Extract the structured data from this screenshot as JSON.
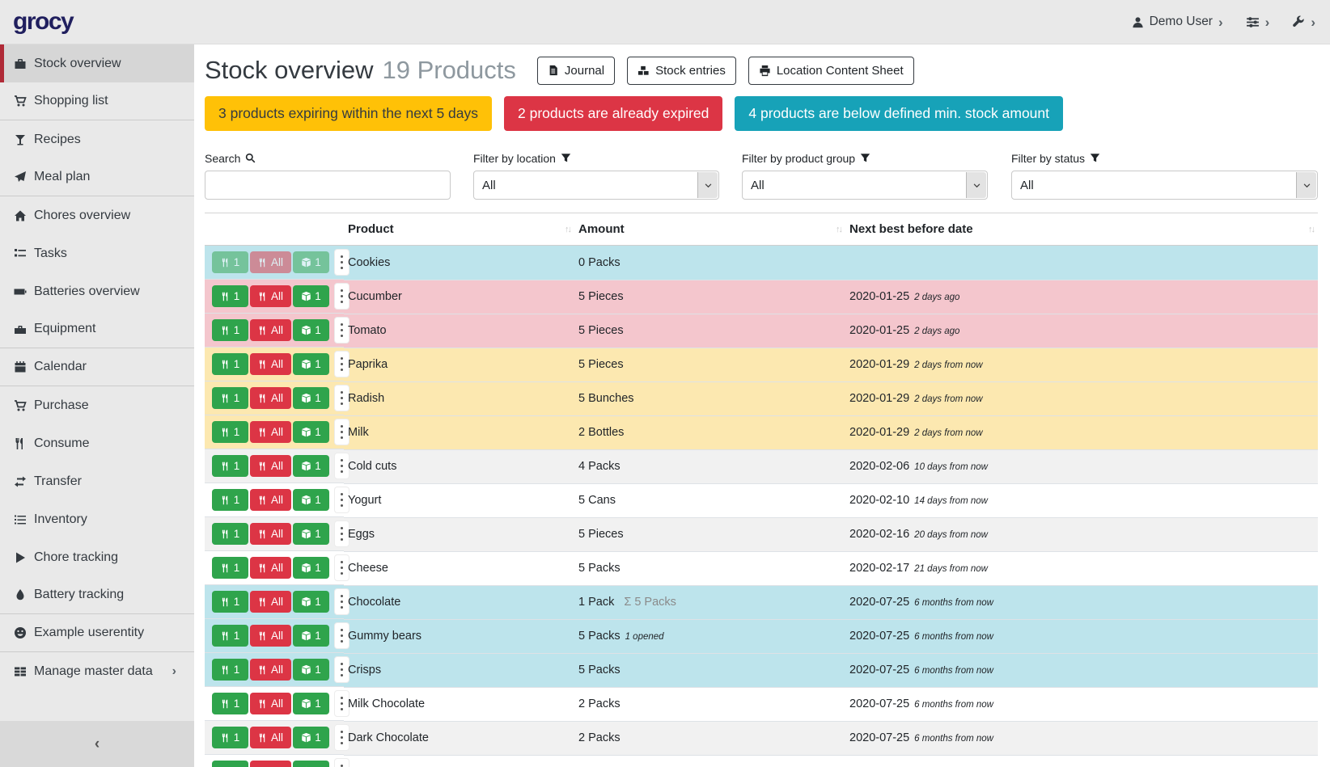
{
  "brand": "grocy",
  "header": {
    "user": "Demo User"
  },
  "sidebar": {
    "items": [
      {
        "label": "Stock overview",
        "icon": "box",
        "active": true
      },
      {
        "label": "Shopping list",
        "icon": "cart",
        "divider_after": true
      },
      {
        "label": "Recipes",
        "icon": "cocktail"
      },
      {
        "label": "Meal plan",
        "icon": "paper-plane",
        "divider_after": true
      },
      {
        "label": "Chores overview",
        "icon": "home"
      },
      {
        "label": "Tasks",
        "icon": "tasks"
      },
      {
        "label": "Batteries overview",
        "icon": "battery"
      },
      {
        "label": "Equipment",
        "icon": "toolbox",
        "divider_after": true
      },
      {
        "label": "Calendar",
        "icon": "calendar",
        "divider_after": true
      },
      {
        "label": "Purchase",
        "icon": "cart"
      },
      {
        "label": "Consume",
        "icon": "utensils"
      },
      {
        "label": "Transfer",
        "icon": "transfer"
      },
      {
        "label": "Inventory",
        "icon": "list"
      },
      {
        "label": "Chore tracking",
        "icon": "play"
      },
      {
        "label": "Battery tracking",
        "icon": "droplet",
        "divider_after": true
      },
      {
        "label": "Example userentity",
        "icon": "smiley",
        "divider_after": true
      },
      {
        "label": "Manage master data",
        "icon": "table",
        "chevron": true
      }
    ],
    "collapse_icon": "‹"
  },
  "page": {
    "title": "Stock overview",
    "subtitle": "19 Products",
    "actions": [
      {
        "label": "Journal",
        "icon": "journal"
      },
      {
        "label": "Stock entries",
        "icon": "cubes"
      },
      {
        "label": "Location Content Sheet",
        "icon": "print"
      }
    ],
    "banners": [
      {
        "text": "3 products expiring within the next 5 days",
        "color": "#ffc107",
        "text_color": "#343a40"
      },
      {
        "text": "2 products are already expired",
        "color": "#dc3545",
        "text_color": "#ffffff"
      },
      {
        "text": "4 products are below defined min. stock amount",
        "color": "#17a2b8",
        "text_color": "#ffffff"
      }
    ]
  },
  "filters": {
    "search_label": "Search",
    "search_value": "",
    "location_label": "Filter by location",
    "location_value": "All",
    "product_group_label": "Filter by product group",
    "product_group_value": "All",
    "status_label": "Filter by status",
    "status_value": "All"
  },
  "table": {
    "columns": [
      "Product",
      "Amount",
      "Next best before date"
    ],
    "sort_glyph": "↑↓",
    "row_actions": {
      "consume_one": "1",
      "consume_all": "All",
      "open_one": "1"
    },
    "rows": [
      {
        "product": "Cookies",
        "amount": "0 Packs",
        "date": "",
        "relative": "",
        "status": "belowmin",
        "muted_actions": true
      },
      {
        "product": "Cucumber",
        "amount": "5 Pieces",
        "date": "2020-01-25",
        "relative": "2 days ago",
        "status": "expired"
      },
      {
        "product": "Tomato",
        "amount": "5 Pieces",
        "date": "2020-01-25",
        "relative": "2 days ago",
        "status": "expired"
      },
      {
        "product": "Paprika",
        "amount": "5 Pieces",
        "date": "2020-01-29",
        "relative": "2 days from now",
        "status": "expiring"
      },
      {
        "product": "Radish",
        "amount": "5 Bunches",
        "date": "2020-01-29",
        "relative": "2 days from now",
        "status": "expiring"
      },
      {
        "product": "Milk",
        "amount": "2 Bottles",
        "date": "2020-01-29",
        "relative": "2 days from now",
        "status": "expiring"
      },
      {
        "product": "Cold cuts",
        "amount": "4 Packs",
        "date": "2020-02-06",
        "relative": "10 days from now",
        "status": ""
      },
      {
        "product": "Yogurt",
        "amount": "5 Cans",
        "date": "2020-02-10",
        "relative": "14 days from now",
        "status": ""
      },
      {
        "product": "Eggs",
        "amount": "5 Pieces",
        "date": "2020-02-16",
        "relative": "20 days from now",
        "status": ""
      },
      {
        "product": "Cheese",
        "amount": "5 Packs",
        "date": "2020-02-17",
        "relative": "21 days from now",
        "status": ""
      },
      {
        "product": "Chocolate",
        "amount": "1 Pack",
        "amount_extra": "Σ 5 Packs",
        "date": "2020-07-25",
        "relative": "6 months from now",
        "status": "belowmin"
      },
      {
        "product": "Gummy bears",
        "amount": "5 Packs",
        "amount_note": "1 opened",
        "date": "2020-07-25",
        "relative": "6 months from now",
        "status": "belowmin"
      },
      {
        "product": "Crisps",
        "amount": "5 Packs",
        "date": "2020-07-25",
        "relative": "6 months from now",
        "status": "belowmin"
      },
      {
        "product": "Milk Chocolate",
        "amount": "2 Packs",
        "date": "2020-07-25",
        "relative": "6 months from now",
        "status": ""
      },
      {
        "product": "Dark Chocolate",
        "amount": "2 Packs",
        "date": "2020-07-25",
        "relative": "6 months from now",
        "status": ""
      },
      {
        "product": "",
        "amount": "",
        "date": "",
        "relative": "",
        "status": "",
        "partial": true
      }
    ]
  },
  "colors": {
    "brand_logo": "#201f5e",
    "sidebar_bg": "#e9e9e9",
    "sidebar_active_bg": "#d6d6d6",
    "accent_red": "#b02a37",
    "banner_warning": "#ffc107",
    "banner_danger": "#dc3545",
    "banner_info": "#17a2b8",
    "row_expired": "#f4c6cd",
    "row_expiring": "#fce8b0",
    "row_below_min": "#bde4ec",
    "button_green": "#2fa44c",
    "button_red": "#dc3545"
  }
}
